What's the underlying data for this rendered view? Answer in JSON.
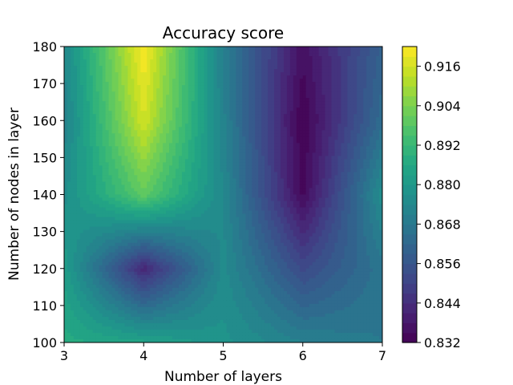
{
  "chart_data": {
    "type": "contour",
    "title": "Accuracy score",
    "xlabel": "Number of layers",
    "ylabel": "Number of nodes in layer",
    "xlim": [
      3,
      7
    ],
    "ylim": [
      100,
      180
    ],
    "x": [
      3,
      4,
      5,
      6,
      7
    ],
    "y": [
      100,
      120,
      140,
      160,
      180
    ],
    "z": [
      [
        0.887,
        0.884,
        0.878,
        0.871,
        0.868
      ],
      [
        0.882,
        0.842,
        0.875,
        0.852,
        0.867
      ],
      [
        0.876,
        0.9,
        0.874,
        0.834,
        0.876
      ],
      [
        0.872,
        0.916,
        0.872,
        0.832,
        0.864
      ],
      [
        0.874,
        0.922,
        0.87,
        0.836,
        0.86
      ]
    ],
    "x_ticks": [
      "3",
      "4",
      "5",
      "6",
      "7"
    ],
    "y_ticks": [
      "100",
      "110",
      "120",
      "130",
      "140",
      "150",
      "160",
      "170",
      "180"
    ],
    "colorbar": {
      "colormap": "viridis",
      "range": [
        0.832,
        0.922
      ],
      "ticks": [
        "0.832",
        "0.844",
        "0.856",
        "0.868",
        "0.880",
        "0.892",
        "0.904",
        "0.916"
      ],
      "tick_values": [
        0.832,
        0.844,
        0.856,
        0.868,
        0.88,
        0.892,
        0.904,
        0.916
      ]
    },
    "grid": false
  }
}
